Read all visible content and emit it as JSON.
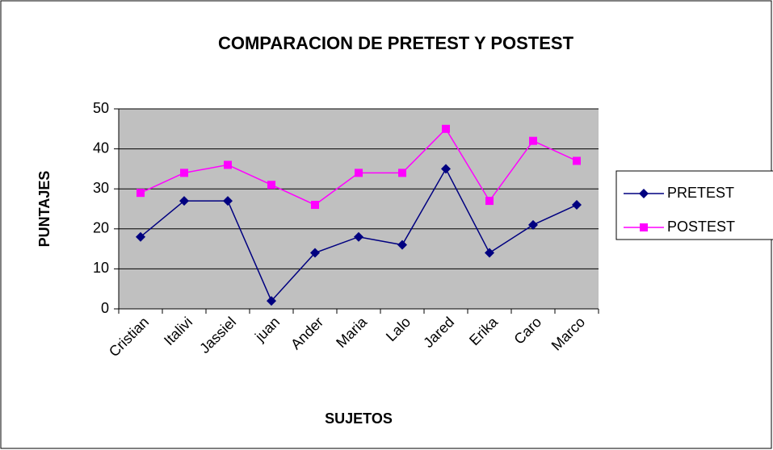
{
  "chart_data": {
    "type": "line",
    "title": "COMPARACION DE PRETEST Y POSTEST",
    "x_label": "SUJETOS",
    "y_label": "PUNTAJES",
    "categories": [
      "Cristian",
      "Italivi",
      "Jassiel",
      "juan",
      "Ander",
      "Maria",
      "Lalo",
      "Jared",
      "Erika",
      "Caro",
      "Marco"
    ],
    "series": [
      {
        "name": "PRETEST",
        "color": "#000080",
        "marker": "diamond",
        "values": [
          18,
          27,
          27,
          2,
          14,
          18,
          16,
          35,
          14,
          21,
          26
        ]
      },
      {
        "name": "POSTEST",
        "color": "#ff00ff",
        "marker": "square",
        "values": [
          29,
          34,
          36,
          31,
          26,
          34,
          34,
          45,
          27,
          42,
          37
        ]
      }
    ],
    "ylim": [
      0,
      50
    ],
    "yticks": [
      0,
      10,
      20,
      30,
      40,
      50
    ],
    "grid": true,
    "legend": "right"
  }
}
